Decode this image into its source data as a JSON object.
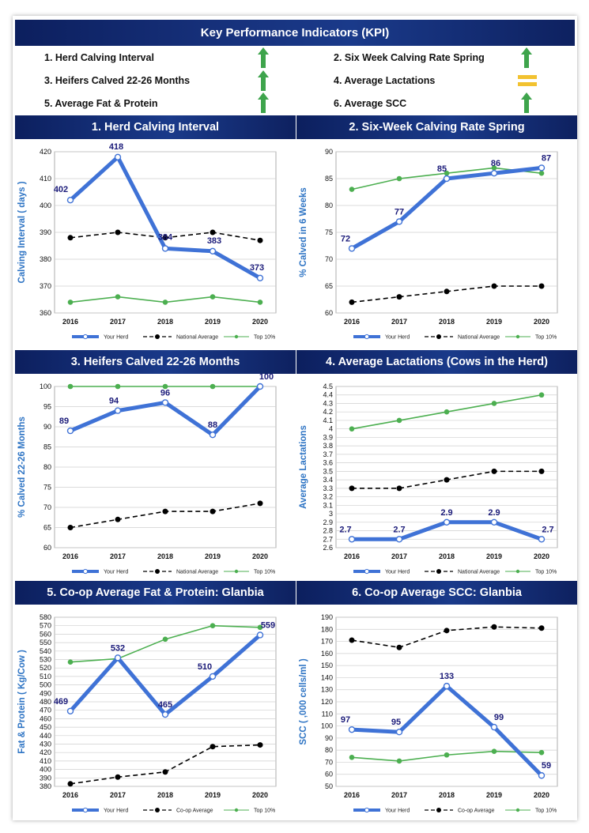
{
  "header": {
    "title": "Key Performance Indicators (KPI)"
  },
  "kpis": [
    {
      "label": "1. Herd Calving Interval",
      "status": "up-arrow-icon",
      "color": "#3ea44c"
    },
    {
      "label": "2. Six Week Calving Rate Spring",
      "status": "up-arrow-icon",
      "color": "#3ea44c"
    },
    {
      "label": "3. Heifers Calved 22-26 Months",
      "status": "up-arrow-icon",
      "color": "#3ea44c"
    },
    {
      "label": "4. Average Lactations",
      "status": "equal-icon",
      "color": "#f2c230"
    },
    {
      "label": "5. Average Fat & Protein",
      "status": "up-arrow-icon",
      "color": "#3ea44c"
    },
    {
      "label": "6. Average SCC",
      "status": "up-arrow-icon",
      "color": "#3ea44c"
    }
  ],
  "colors": {
    "your_herd": "#3f72d6",
    "average": "#000000",
    "top10": "#4caf50",
    "header_bg": "#16307a",
    "axis_title": "#2e74c4"
  },
  "chart_data": [
    {
      "type": "line",
      "title": "1. Herd Calving Interval",
      "ylabel": "Calving Interval ( days )",
      "categories": [
        "2016",
        "2017",
        "2018",
        "2019",
        "2020"
      ],
      "ylim": [
        360,
        420
      ],
      "ystep": 10,
      "yticks": [
        "360",
        "370",
        "380",
        "390",
        "400",
        "410",
        "420"
      ],
      "series": [
        {
          "name": "Your Herd",
          "values": [
            402,
            418,
            384,
            383,
            373
          ],
          "labels": [
            "402",
            "418",
            "384",
            "383",
            "373"
          ]
        },
        {
          "name": "National Average",
          "values": [
            388,
            390,
            388,
            390,
            387
          ]
        },
        {
          "name": "Top 10%",
          "values": [
            364,
            366,
            364,
            366,
            364
          ]
        }
      ],
      "grid": true,
      "legend": "bottom"
    },
    {
      "type": "line",
      "title": "2. Six-Week Calving Rate Spring",
      "ylabel": "% Calved in 6 Weeks",
      "categories": [
        "2016",
        "2017",
        "2018",
        "2019",
        "2020"
      ],
      "ylim": [
        60,
        90
      ],
      "ystep": 5,
      "yticks": [
        "60",
        "65",
        "70",
        "75",
        "80",
        "85",
        "90"
      ],
      "series": [
        {
          "name": "Your Herd",
          "values": [
            72,
            77,
            85,
            86,
            87
          ],
          "labels": [
            "72",
            "77",
            "85",
            "86",
            "87"
          ]
        },
        {
          "name": "National Average",
          "values": [
            62,
            63,
            64,
            65,
            65
          ]
        },
        {
          "name": "Top 10%",
          "values": [
            83,
            85,
            86,
            87,
            86
          ]
        }
      ],
      "grid": true,
      "legend": "bottom"
    },
    {
      "type": "line",
      "title": "3. Heifers Calved 22-26 Months",
      "ylabel": "% Calved 22-26 Months",
      "categories": [
        "2016",
        "2017",
        "2018",
        "2019",
        "2020"
      ],
      "ylim": [
        60,
        100
      ],
      "ystep": 5,
      "yticks": [
        "60",
        "65",
        "70",
        "75",
        "80",
        "85",
        "90",
        "95",
        "100"
      ],
      "series": [
        {
          "name": "Your Herd",
          "values": [
            89,
            94,
            96,
            88,
            100
          ],
          "labels": [
            "89",
            "94",
            "96",
            "88",
            "100"
          ]
        },
        {
          "name": "National Average",
          "values": [
            65,
            67,
            69,
            69,
            71
          ]
        },
        {
          "name": "Top 10%",
          "values": [
            100,
            100,
            100,
            100,
            100
          ]
        }
      ],
      "grid": true,
      "legend": "bottom"
    },
    {
      "type": "line",
      "title": "4. Average Lactations (Cows in the Herd)",
      "ylabel": "Average Lactations",
      "categories": [
        "2016",
        "2017",
        "2018",
        "2019",
        "2020"
      ],
      "ylim": [
        2.6,
        4.5
      ],
      "ystep": 0.1,
      "yticks": [
        "2.6",
        "2.7",
        "2.8",
        "2.9",
        "3",
        "3.1",
        "3.2",
        "3.3",
        "3.4",
        "3.5",
        "3.6",
        "3.7",
        "3.8",
        "3.9",
        "4",
        "4.1",
        "4.2",
        "4.3",
        "4.4",
        "4.5"
      ],
      "series": [
        {
          "name": "Your Herd",
          "values": [
            2.7,
            2.7,
            2.9,
            2.9,
            2.7
          ],
          "labels": [
            "2.7",
            "2.7",
            "2.9",
            "2.9",
            "2.7"
          ]
        },
        {
          "name": "National Average",
          "values": [
            3.3,
            3.3,
            3.4,
            3.5,
            3.5
          ]
        },
        {
          "name": "Top 10%",
          "values": [
            4.0,
            4.1,
            4.2,
            4.3,
            4.4
          ]
        }
      ],
      "grid": true,
      "legend": "bottom"
    },
    {
      "type": "line",
      "title": "5. Co-op Average Fat & Protein: Glanbia",
      "ylabel": "Fat & Protein ( Kg/Cow )",
      "categories": [
        "2016",
        "2017",
        "2018",
        "2019",
        "2020"
      ],
      "ylim": [
        380,
        580
      ],
      "ystep": 10,
      "yticks": [
        "380",
        "390",
        "400",
        "410",
        "420",
        "430",
        "440",
        "450",
        "460",
        "470",
        "480",
        "490",
        "500",
        "510",
        "520",
        "530",
        "540",
        "550",
        "560",
        "570",
        "580"
      ],
      "series": [
        {
          "name": "Your Herd",
          "values": [
            469,
            532,
            465,
            510,
            559
          ],
          "labels": [
            "469",
            "532",
            "465",
            "510",
            "559"
          ]
        },
        {
          "name": "Co-op Average",
          "values": [
            383,
            391,
            397,
            427,
            429
          ]
        },
        {
          "name": "Top 10%",
          "values": [
            527,
            531,
            554,
            570,
            568
          ]
        }
      ],
      "grid": true,
      "legend": "bottom"
    },
    {
      "type": "line",
      "title": "6. Co-op Average SCC: Glanbia",
      "ylabel": "SCC ( ,000 cells/ml )",
      "categories": [
        "2016",
        "2017",
        "2018",
        "2019",
        "2020"
      ],
      "ylim": [
        50,
        190
      ],
      "ystep": 10,
      "yticks": [
        "50",
        "60",
        "70",
        "80",
        "90",
        "100",
        "110",
        "120",
        "130",
        "140",
        "150",
        "160",
        "170",
        "180",
        "190"
      ],
      "series": [
        {
          "name": "Your Herd",
          "values": [
            97,
            95,
            133,
            99,
            59
          ],
          "labels": [
            "97",
            "95",
            "133",
            "99",
            "59"
          ]
        },
        {
          "name": "Co-op Average",
          "values": [
            171,
            165,
            179,
            182,
            181
          ]
        },
        {
          "name": "Top 10%",
          "values": [
            74,
            71,
            76,
            79,
            78
          ]
        }
      ],
      "grid": true,
      "legend": "bottom"
    }
  ]
}
